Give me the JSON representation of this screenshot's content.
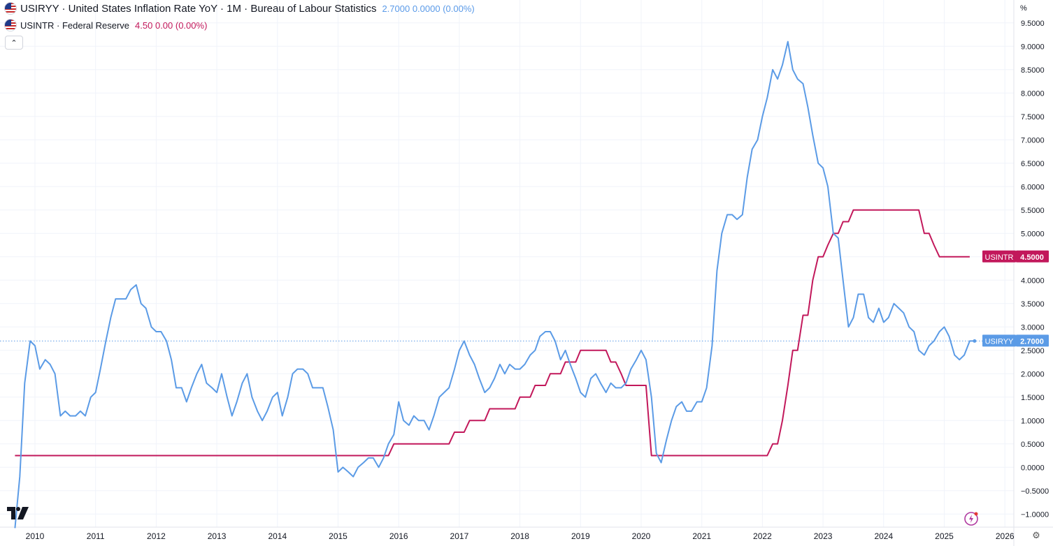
{
  "legend": {
    "series1_symbol": "USIRYY · United States Inflation Rate YoY · 1M · Bureau of Labour Statistics",
    "series1_values": "2.7000  0.0000 (0.00%)",
    "series2_symbol": "USINTR · Federal Reserve",
    "series2_values": "4.50  0.00 (0.00%)"
  },
  "collapse_label": "⌃",
  "unit_label": "%",
  "settings_icon": "gear-icon",
  "colors": {
    "inflation": "#5b9be6",
    "rate": "#c2185b",
    "grid": "#f0f3fa",
    "axis_text": "#131722"
  },
  "chart_data": {
    "type": "line",
    "x_axis_labels": [
      "2010",
      "2011",
      "2012",
      "2013",
      "2014",
      "2015",
      "2016",
      "2017",
      "2018",
      "2019",
      "2020",
      "2021",
      "2022",
      "2023",
      "2024",
      "2025",
      "2026"
    ],
    "y_axis_labels": [
      "9.5000",
      "9.0000",
      "8.5000",
      "8.0000",
      "7.5000",
      "7.0000",
      "6.5000",
      "6.0000",
      "5.5000",
      "5.0000",
      "4.5000",
      "4.0000",
      "3.5000",
      "3.0000",
      "2.5000",
      "2.0000",
      "1.5000",
      "1.0000",
      "0.5000",
      "0.0000",
      "−0.5000",
      "−1.0000"
    ],
    "ylim": [
      -1.2,
      9.75
    ],
    "xlim": [
      2009.75,
      2026.07
    ],
    "series": [
      {
        "name": "USIRYY",
        "color": "#5b9be6",
        "last_value_label": "2.7000",
        "points": [
          [
            2009.67,
            -1.3
          ],
          [
            2009.75,
            -0.2
          ],
          [
            2009.83,
            1.8
          ],
          [
            2009.92,
            2.7
          ],
          [
            2010.0,
            2.6
          ],
          [
            2010.08,
            2.1
          ],
          [
            2010.17,
            2.3
          ],
          [
            2010.25,
            2.2
          ],
          [
            2010.33,
            2.0
          ],
          [
            2010.42,
            1.1
          ],
          [
            2010.5,
            1.2
          ],
          [
            2010.58,
            1.1
          ],
          [
            2010.67,
            1.1
          ],
          [
            2010.75,
            1.2
          ],
          [
            2010.83,
            1.1
          ],
          [
            2010.92,
            1.5
          ],
          [
            2011.0,
            1.6
          ],
          [
            2011.08,
            2.1
          ],
          [
            2011.17,
            2.7
          ],
          [
            2011.25,
            3.2
          ],
          [
            2011.33,
            3.6
          ],
          [
            2011.42,
            3.6
          ],
          [
            2011.5,
            3.6
          ],
          [
            2011.58,
            3.8
          ],
          [
            2011.67,
            3.9
          ],
          [
            2011.75,
            3.5
          ],
          [
            2011.83,
            3.4
          ],
          [
            2011.92,
            3.0
          ],
          [
            2012.0,
            2.9
          ],
          [
            2012.08,
            2.9
          ],
          [
            2012.17,
            2.7
          ],
          [
            2012.25,
            2.3
          ],
          [
            2012.33,
            1.7
          ],
          [
            2012.42,
            1.7
          ],
          [
            2012.5,
            1.4
          ],
          [
            2012.58,
            1.7
          ],
          [
            2012.67,
            2.0
          ],
          [
            2012.75,
            2.2
          ],
          [
            2012.83,
            1.8
          ],
          [
            2012.92,
            1.7
          ],
          [
            2013.0,
            1.6
          ],
          [
            2013.08,
            2.0
          ],
          [
            2013.17,
            1.5
          ],
          [
            2013.25,
            1.1
          ],
          [
            2013.33,
            1.4
          ],
          [
            2013.42,
            1.8
          ],
          [
            2013.5,
            2.0
          ],
          [
            2013.58,
            1.5
          ],
          [
            2013.67,
            1.2
          ],
          [
            2013.75,
            1.0
          ],
          [
            2013.83,
            1.2
          ],
          [
            2013.92,
            1.5
          ],
          [
            2014.0,
            1.6
          ],
          [
            2014.08,
            1.1
          ],
          [
            2014.17,
            1.5
          ],
          [
            2014.25,
            2.0
          ],
          [
            2014.33,
            2.1
          ],
          [
            2014.42,
            2.1
          ],
          [
            2014.5,
            2.0
          ],
          [
            2014.58,
            1.7
          ],
          [
            2014.67,
            1.7
          ],
          [
            2014.75,
            1.7
          ],
          [
            2014.83,
            1.3
          ],
          [
            2014.92,
            0.8
          ],
          [
            2015.0,
            -0.1
          ],
          [
            2015.08,
            0.0
          ],
          [
            2015.17,
            -0.1
          ],
          [
            2015.25,
            -0.2
          ],
          [
            2015.33,
            0.0
          ],
          [
            2015.42,
            0.1
          ],
          [
            2015.5,
            0.2
          ],
          [
            2015.58,
            0.2
          ],
          [
            2015.67,
            0.0
          ],
          [
            2015.75,
            0.2
          ],
          [
            2015.83,
            0.5
          ],
          [
            2015.92,
            0.7
          ],
          [
            2016.0,
            1.4
          ],
          [
            2016.08,
            1.0
          ],
          [
            2016.17,
            0.9
          ],
          [
            2016.25,
            1.1
          ],
          [
            2016.33,
            1.0
          ],
          [
            2016.42,
            1.0
          ],
          [
            2016.5,
            0.8
          ],
          [
            2016.58,
            1.1
          ],
          [
            2016.67,
            1.5
          ],
          [
            2016.75,
            1.6
          ],
          [
            2016.83,
            1.7
          ],
          [
            2016.92,
            2.1
          ],
          [
            2017.0,
            2.5
          ],
          [
            2017.08,
            2.7
          ],
          [
            2017.17,
            2.4
          ],
          [
            2017.25,
            2.2
          ],
          [
            2017.33,
            1.9
          ],
          [
            2017.42,
            1.6
          ],
          [
            2017.5,
            1.7
          ],
          [
            2017.58,
            1.9
          ],
          [
            2017.67,
            2.2
          ],
          [
            2017.75,
            2.0
          ],
          [
            2017.83,
            2.2
          ],
          [
            2017.92,
            2.1
          ],
          [
            2018.0,
            2.1
          ],
          [
            2018.08,
            2.2
          ],
          [
            2018.17,
            2.4
          ],
          [
            2018.25,
            2.5
          ],
          [
            2018.33,
            2.8
          ],
          [
            2018.42,
            2.9
          ],
          [
            2018.5,
            2.9
          ],
          [
            2018.58,
            2.7
          ],
          [
            2018.67,
            2.3
          ],
          [
            2018.75,
            2.5
          ],
          [
            2018.83,
            2.2
          ],
          [
            2018.92,
            1.9
          ],
          [
            2019.0,
            1.6
          ],
          [
            2019.08,
            1.5
          ],
          [
            2019.17,
            1.9
          ],
          [
            2019.25,
            2.0
          ],
          [
            2019.33,
            1.8
          ],
          [
            2019.42,
            1.6
          ],
          [
            2019.5,
            1.8
          ],
          [
            2019.58,
            1.7
          ],
          [
            2019.67,
            1.7
          ],
          [
            2019.75,
            1.8
          ],
          [
            2019.83,
            2.1
          ],
          [
            2019.92,
            2.3
          ],
          [
            2020.0,
            2.5
          ],
          [
            2020.08,
            2.3
          ],
          [
            2020.17,
            1.5
          ],
          [
            2020.25,
            0.3
          ],
          [
            2020.33,
            0.1
          ],
          [
            2020.42,
            0.6
          ],
          [
            2020.5,
            1.0
          ],
          [
            2020.58,
            1.3
          ],
          [
            2020.67,
            1.4
          ],
          [
            2020.75,
            1.2
          ],
          [
            2020.83,
            1.2
          ],
          [
            2020.92,
            1.4
          ],
          [
            2021.0,
            1.4
          ],
          [
            2021.08,
            1.7
          ],
          [
            2021.17,
            2.6
          ],
          [
            2021.25,
            4.2
          ],
          [
            2021.33,
            5.0
          ],
          [
            2021.42,
            5.4
          ],
          [
            2021.5,
            5.4
          ],
          [
            2021.58,
            5.3
          ],
          [
            2021.67,
            5.4
          ],
          [
            2021.75,
            6.2
          ],
          [
            2021.83,
            6.8
          ],
          [
            2021.92,
            7.0
          ],
          [
            2022.0,
            7.5
          ],
          [
            2022.08,
            7.9
          ],
          [
            2022.17,
            8.5
          ],
          [
            2022.25,
            8.3
          ],
          [
            2022.33,
            8.6
          ],
          [
            2022.42,
            9.1
          ],
          [
            2022.5,
            8.5
          ],
          [
            2022.58,
            8.3
          ],
          [
            2022.67,
            8.2
          ],
          [
            2022.75,
            7.7
          ],
          [
            2022.83,
            7.1
          ],
          [
            2022.92,
            6.5
          ],
          [
            2023.0,
            6.4
          ],
          [
            2023.08,
            6.0
          ],
          [
            2023.17,
            5.0
          ],
          [
            2023.25,
            4.9
          ],
          [
            2023.33,
            4.0
          ],
          [
            2023.42,
            3.0
          ],
          [
            2023.5,
            3.2
          ],
          [
            2023.58,
            3.7
          ],
          [
            2023.67,
            3.7
          ],
          [
            2023.75,
            3.2
          ],
          [
            2023.83,
            3.1
          ],
          [
            2023.92,
            3.4
          ],
          [
            2024.0,
            3.1
          ],
          [
            2024.08,
            3.2
          ],
          [
            2024.17,
            3.5
          ],
          [
            2024.25,
            3.4
          ],
          [
            2024.33,
            3.3
          ],
          [
            2024.42,
            3.0
          ],
          [
            2024.5,
            2.9
          ],
          [
            2024.58,
            2.5
          ],
          [
            2024.67,
            2.4
          ],
          [
            2024.75,
            2.6
          ],
          [
            2024.83,
            2.7
          ],
          [
            2024.92,
            2.9
          ],
          [
            2025.0,
            3.0
          ],
          [
            2025.08,
            2.8
          ],
          [
            2025.17,
            2.4
          ],
          [
            2025.25,
            2.3
          ],
          [
            2025.33,
            2.4
          ],
          [
            2025.42,
            2.7
          ],
          [
            2025.5,
            2.7
          ]
        ]
      },
      {
        "name": "USINTR",
        "color": "#c2185b",
        "last_value_label": "4.5000",
        "points": [
          [
            2009.67,
            0.25
          ],
          [
            2015.83,
            0.25
          ],
          [
            2015.92,
            0.5
          ],
          [
            2016.83,
            0.5
          ],
          [
            2016.92,
            0.75
          ],
          [
            2017.08,
            0.75
          ],
          [
            2017.17,
            1.0
          ],
          [
            2017.42,
            1.0
          ],
          [
            2017.5,
            1.25
          ],
          [
            2017.92,
            1.25
          ],
          [
            2018.0,
            1.5
          ],
          [
            2018.17,
            1.5
          ],
          [
            2018.25,
            1.75
          ],
          [
            2018.42,
            1.75
          ],
          [
            2018.5,
            2.0
          ],
          [
            2018.67,
            2.0
          ],
          [
            2018.75,
            2.25
          ],
          [
            2018.92,
            2.25
          ],
          [
            2019.0,
            2.5
          ],
          [
            2019.42,
            2.5
          ],
          [
            2019.5,
            2.25
          ],
          [
            2019.58,
            2.25
          ],
          [
            2019.67,
            2.0
          ],
          [
            2019.75,
            1.75
          ],
          [
            2020.08,
            1.75
          ],
          [
            2020.17,
            0.25
          ],
          [
            2022.08,
            0.25
          ],
          [
            2022.17,
            0.5
          ],
          [
            2022.25,
            0.5
          ],
          [
            2022.33,
            1.0
          ],
          [
            2022.42,
            1.75
          ],
          [
            2022.5,
            2.5
          ],
          [
            2022.58,
            2.5
          ],
          [
            2022.67,
            3.25
          ],
          [
            2022.75,
            3.25
          ],
          [
            2022.83,
            4.0
          ],
          [
            2022.92,
            4.5
          ],
          [
            2023.0,
            4.5
          ],
          [
            2023.08,
            4.75
          ],
          [
            2023.17,
            5.0
          ],
          [
            2023.25,
            5.0
          ],
          [
            2023.33,
            5.25
          ],
          [
            2023.42,
            5.25
          ],
          [
            2023.5,
            5.5
          ],
          [
            2024.58,
            5.5
          ],
          [
            2024.67,
            5.0
          ],
          [
            2024.75,
            5.0
          ],
          [
            2024.83,
            4.75
          ],
          [
            2024.92,
            4.5
          ],
          [
            2025.42,
            4.5
          ]
        ]
      }
    ],
    "price_labels": [
      {
        "series": "USINTR",
        "name": "USINTR",
        "value": "4.5000",
        "y": 4.5,
        "color": "#c2185b"
      },
      {
        "series": "USIRYY",
        "name": "USIRYY",
        "value": "2.7000",
        "y": 2.7,
        "color": "#5b9be6"
      }
    ],
    "last_value_dotted_line": 2.7,
    "grid": true
  }
}
